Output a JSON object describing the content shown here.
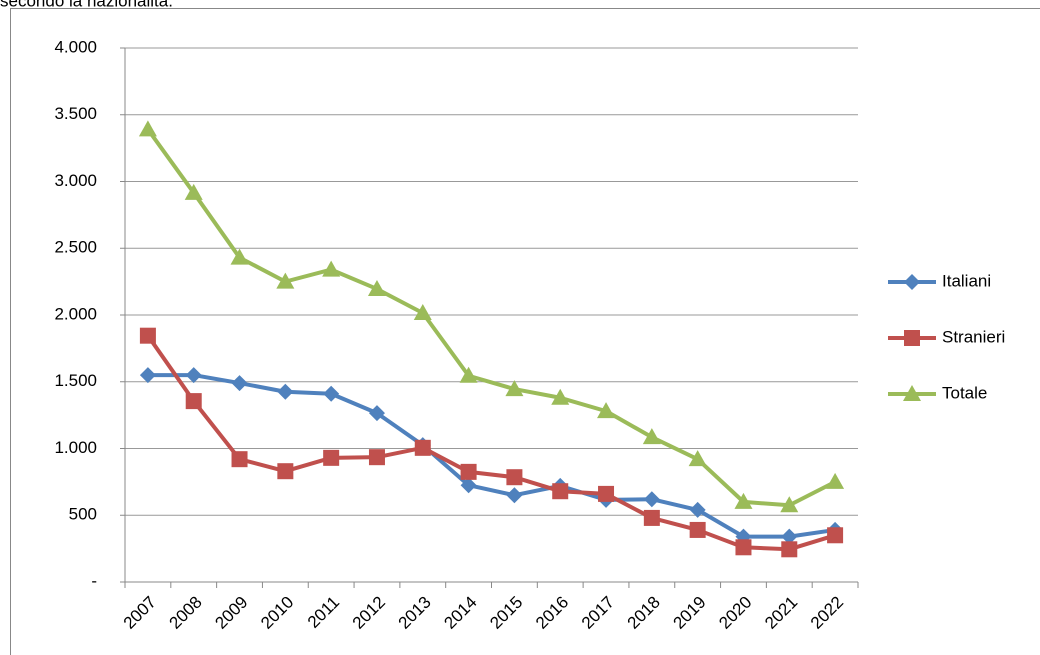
{
  "chart_data": {
    "type": "line",
    "title": "secondo la nazionalità.",
    "categories": [
      "2007",
      "2008",
      "2009",
      "2010",
      "2011",
      "2012",
      "2013",
      "2014",
      "2015",
      "2016",
      "2017",
      "2018",
      "2019",
      "2020",
      "2021",
      "2022"
    ],
    "series": [
      {
        "name": "Italiani",
        "color": "#4f81bd",
        "marker": "diamond",
        "values": [
          1550,
          1550,
          1490,
          1425,
          1410,
          1265,
          1025,
          725,
          650,
          720,
          615,
          620,
          540,
          340,
          340,
          390
        ]
      },
      {
        "name": "Stranieri",
        "color": "#c0504d",
        "marker": "square",
        "values": [
          1845,
          1355,
          920,
          830,
          930,
          935,
          1005,
          825,
          785,
          680,
          660,
          480,
          390,
          260,
          245,
          350
        ]
      },
      {
        "name": "Totale",
        "color": "#9bbb59",
        "marker": "triangle",
        "values": [
          3390,
          2915,
          2430,
          2250,
          2340,
          2195,
          2015,
          1545,
          1445,
          1380,
          1280,
          1085,
          920,
          600,
          575,
          750
        ]
      }
    ],
    "ylim": [
      0,
      4000
    ],
    "yticks": [
      {
        "value": 0,
        "label": "-"
      },
      500,
      {
        "value": 1000,
        "label": "1.000"
      },
      {
        "value": 1500,
        "label": "1.500"
      },
      {
        "value": 2000,
        "label": "2.000"
      },
      {
        "value": 2500,
        "label": "2.500"
      },
      {
        "value": 3000,
        "label": "3.000"
      },
      {
        "value": 3500,
        "label": "3.500"
      },
      {
        "value": 4000,
        "label": "4.000"
      }
    ],
    "grid": true,
    "legend": "right"
  }
}
